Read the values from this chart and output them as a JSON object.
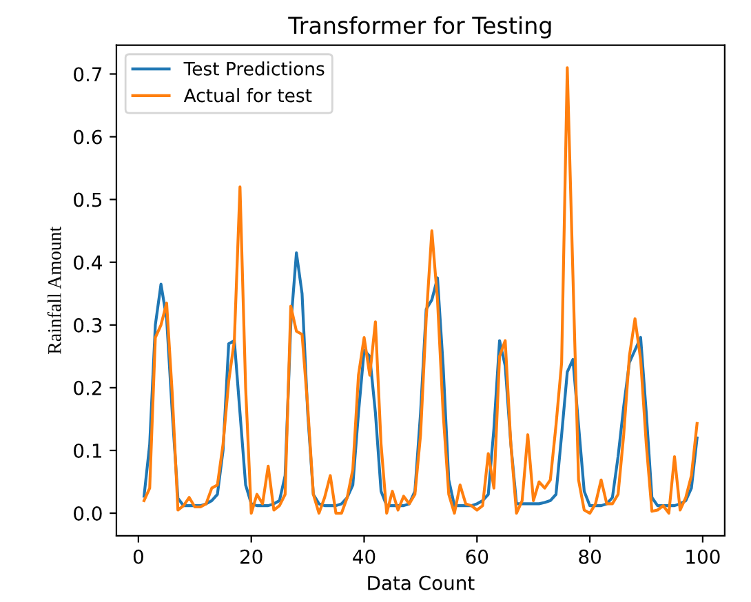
{
  "chart_data": {
    "type": "line",
    "title": "Transformer for Testing",
    "xlabel": "Data Count",
    "ylabel": "Rainfall Amount",
    "x": [
      1,
      2,
      3,
      4,
      5,
      6,
      7,
      8,
      9,
      10,
      11,
      12,
      13,
      14,
      15,
      16,
      17,
      18,
      19,
      20,
      21,
      22,
      23,
      24,
      25,
      26,
      27,
      28,
      29,
      30,
      31,
      32,
      33,
      34,
      35,
      36,
      37,
      38,
      39,
      40,
      41,
      42,
      43,
      44,
      45,
      46,
      47,
      48,
      49,
      50,
      51,
      52,
      53,
      54,
      55,
      56,
      57,
      58,
      59,
      60,
      61,
      62,
      63,
      64,
      65,
      66,
      67,
      68,
      69,
      70,
      71,
      72,
      73,
      74,
      75,
      76,
      77,
      78,
      79,
      80,
      81,
      82,
      83,
      84,
      85,
      86,
      87,
      88,
      89,
      90,
      91,
      92,
      93,
      94,
      95,
      96,
      97,
      98,
      99
    ],
    "series": [
      {
        "name": "Test Predictions",
        "color": "#1f77b4",
        "values": [
          0.027,
          0.11,
          0.3,
          0.365,
          0.31,
          0.16,
          0.024,
          0.012,
          0.012,
          0.012,
          0.012,
          0.015,
          0.02,
          0.03,
          0.1,
          0.27,
          0.275,
          0.16,
          0.045,
          0.015,
          0.012,
          0.012,
          0.012,
          0.015,
          0.02,
          0.06,
          0.3,
          0.415,
          0.35,
          0.16,
          0.03,
          0.015,
          0.012,
          0.012,
          0.012,
          0.015,
          0.025,
          0.045,
          0.16,
          0.26,
          0.25,
          0.16,
          0.035,
          0.012,
          0.012,
          0.012,
          0.012,
          0.015,
          0.035,
          0.16,
          0.325,
          0.34,
          0.375,
          0.235,
          0.053,
          0.012,
          0.012,
          0.012,
          0.012,
          0.015,
          0.02,
          0.03,
          0.135,
          0.275,
          0.235,
          0.11,
          0.015,
          0.015,
          0.015,
          0.015,
          0.015,
          0.017,
          0.02,
          0.03,
          0.125,
          0.225,
          0.245,
          0.14,
          0.035,
          0.012,
          0.012,
          0.012,
          0.015,
          0.025,
          0.09,
          0.17,
          0.24,
          0.26,
          0.28,
          0.16,
          0.025,
          0.012,
          0.012,
          0.012,
          0.012,
          0.015,
          0.02,
          0.04,
          0.12
        ]
      },
      {
        "name": "Actual for test",
        "color": "#ff7f0e",
        "values": [
          0.02,
          0.04,
          0.28,
          0.3,
          0.335,
          0.19,
          0.005,
          0.012,
          0.025,
          0.01,
          0.01,
          0.015,
          0.04,
          0.045,
          0.11,
          0.21,
          0.275,
          0.52,
          0.2,
          0.0,
          0.03,
          0.015,
          0.075,
          0.005,
          0.012,
          0.03,
          0.33,
          0.29,
          0.285,
          0.17,
          0.03,
          0.0,
          0.025,
          0.06,
          0.0,
          0.0,
          0.025,
          0.07,
          0.22,
          0.28,
          0.22,
          0.305,
          0.11,
          0.0,
          0.035,
          0.005,
          0.027,
          0.015,
          0.03,
          0.125,
          0.31,
          0.45,
          0.34,
          0.16,
          0.03,
          0.0,
          0.045,
          0.015,
          0.012,
          0.005,
          0.012,
          0.095,
          0.04,
          0.25,
          0.275,
          0.11,
          0.0,
          0.02,
          0.125,
          0.02,
          0.05,
          0.04,
          0.053,
          0.14,
          0.24,
          0.71,
          0.38,
          0.053,
          0.005,
          0.0,
          0.015,
          0.053,
          0.015,
          0.015,
          0.03,
          0.125,
          0.25,
          0.31,
          0.245,
          0.11,
          0.003,
          0.005,
          0.012,
          0.0,
          0.09,
          0.005,
          0.025,
          0.06,
          0.143
        ]
      }
    ],
    "xlim": [
      -3.9,
      103.9
    ],
    "xticks": [
      0,
      20,
      40,
      60,
      80,
      100
    ],
    "ylim": [
      -0.036,
      0.746
    ],
    "yticks": [
      {
        "value": 0,
        "label": "0.0"
      },
      0.1,
      0.2,
      0.3,
      0.4,
      0.5,
      0.6,
      0.7
    ],
    "legend": "upper left",
    "grid": false,
    "marker": "none",
    "line_style": "solid"
  }
}
